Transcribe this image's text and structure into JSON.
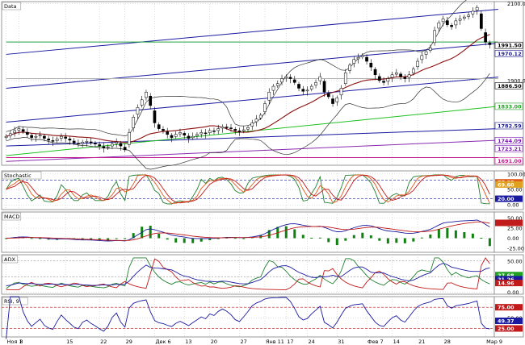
{
  "chart_data": {
    "type": "line",
    "x_ticks": [
      {
        "i": 0,
        "label": "Ноя 1"
      },
      {
        "i": 3,
        "label": "8"
      },
      {
        "i": 14,
        "label": "15"
      },
      {
        "i": 22,
        "label": "22"
      },
      {
        "i": 28,
        "label": "29"
      },
      {
        "i": 35,
        "label": "Дек 6"
      },
      {
        "i": 42,
        "label": "13"
      },
      {
        "i": 48,
        "label": "20"
      },
      {
        "i": 55,
        "label": "27"
      },
      {
        "i": 61,
        "label": "Янв 11"
      },
      {
        "i": 66,
        "label": "17"
      },
      {
        "i": 71,
        "label": "24"
      },
      {
        "i": 78,
        "label": "31"
      },
      {
        "i": 85,
        "label": "Фев 7"
      },
      {
        "i": 91,
        "label": "14"
      },
      {
        "i": 97,
        "label": "21"
      },
      {
        "i": 103,
        "label": "28"
      },
      {
        "i": 113,
        "label": "Мар 9"
      }
    ],
    "panels": [
      {
        "id": "price",
        "label": "Data",
        "ylim": [
          1680,
          2105
        ],
        "y_ticks": [
          2100.0,
          1900.0
        ],
        "price_tags": [
          {
            "value": 1991.5,
            "label": "1991.50",
            "bg": "#ffffff",
            "fg": "#000000"
          },
          {
            "value": 1970.12,
            "label": "1970.12",
            "bg": "#ffffff",
            "fg": "#1a1a8c"
          },
          {
            "value": 1886.5,
            "label": "1886.50",
            "bg": "#ffffff",
            "fg": "#000000"
          },
          {
            "value": 1833.0,
            "label": "1833.00",
            "bg": "#ffffff",
            "fg": "#20a020"
          },
          {
            "value": 1782.59,
            "label": "1782.59",
            "bg": "#ffffff",
            "fg": "#1a1a8c"
          },
          {
            "value": 1744.09,
            "label": "1744.09",
            "bg": "#ffffff",
            "fg": "#7a1ab0"
          },
          {
            "value": 1723.21,
            "label": "1723.21",
            "bg": "#ffffff",
            "fg": "#7a1ab0"
          },
          {
            "value": 1691.0,
            "label": "1691.00",
            "bg": "#ffffff",
            "fg": "#c01a8c"
          }
        ],
        "channel_lines": [
          {
            "color": "#1a1aa0",
            "from": [
              0,
              1968
            ],
            "to": [
              116,
              2085
            ]
          },
          {
            "color": "#1a1aa0",
            "from": [
              0,
              1880
            ],
            "to": [
              116,
              1997
            ]
          },
          {
            "color": "#1a1aa0",
            "from": [
              0,
              1792
            ],
            "to": [
              116,
              1909
            ]
          },
          {
            "color": "#1a1aa0",
            "from": [
              0,
              1730
            ],
            "to": [
              116,
              1775
            ]
          },
          {
            "color": "#8a2ab0",
            "from": [
              0,
              1690
            ],
            "to": [
              116,
              1745
            ]
          },
          {
            "color": "#20c020",
            "from": [
              0,
              1705
            ],
            "to": [
              116,
              1833
            ]
          },
          {
            "color": "#c01a8c",
            "from": [
              0,
              1700
            ],
            "to": [
              116,
              1700
            ]
          },
          {
            "color": "#20a040",
            "from": [
              0,
              2000
            ],
            "to": [
              116,
              2000
            ]
          },
          {
            "color": "#b0b0b0",
            "from": [
              0,
              1905
            ],
            "to": [
              116,
              1905
            ]
          }
        ],
        "close": [
          1755,
          1762,
          1770,
          1775,
          1768,
          1760,
          1752,
          1755,
          1758,
          1750,
          1745,
          1742,
          1748,
          1755,
          1750,
          1745,
          1738,
          1735,
          1740,
          1742,
          1738,
          1735,
          1730,
          1725,
          1728,
          1735,
          1740,
          1730,
          1720,
          1765,
          1805,
          1830,
          1850,
          1870,
          1835,
          1790,
          1775,
          1770,
          1760,
          1752,
          1760,
          1765,
          1758,
          1750,
          1755,
          1760,
          1765,
          1762,
          1770,
          1768,
          1775,
          1780,
          1778,
          1775,
          1770,
          1768,
          1772,
          1778,
          1790,
          1800,
          1810,
          1840,
          1870,
          1885,
          1892,
          1905,
          1910,
          1905,
          1895,
          1880,
          1872,
          1875,
          1885,
          1895,
          1910,
          1870,
          1858,
          1840,
          1855,
          1880,
          1920,
          1940,
          1955,
          1960,
          1965,
          1950,
          1935,
          1915,
          1900,
          1895,
          1905,
          1915,
          1920,
          1910,
          1905,
          1915,
          1930,
          1950,
          1965,
          1975,
          1985,
          2030,
          2050,
          2060,
          2045,
          2040,
          2055,
          2060,
          2065,
          2070,
          2080,
          2090,
          2035,
          2000,
          1993
        ]
      },
      {
        "id": "stochastic",
        "label": "Stochastic",
        "ylim": [
          -15,
          110
        ],
        "y_ticks": [
          100.0,
          50.0,
          0.0
        ],
        "tags": [
          {
            "value": 73.0,
            "label": "77.05",
            "bg": "#e05a1a",
            "fg": "#ffffff"
          },
          {
            "value": 66.0,
            "label": "69.60",
            "bg": "#e0a020",
            "fg": "#ffffff"
          },
          {
            "value": 20.0,
            "label": "20.00",
            "bg": "#1a1aa0",
            "fg": "#ffffff"
          }
        ]
      },
      {
        "id": "macd",
        "label": "MACD",
        "ylim": [
          -35,
          65
        ],
        "y_ticks": [
          50.0,
          25.0,
          0.0,
          -25.0
        ],
        "tags": [
          {
            "value": 38.0,
            "label": "",
            "bg": "#c01a1a",
            "fg": "#ffffff"
          }
        ]
      },
      {
        "id": "adx",
        "label": "ADX",
        "ylim": [
          -3,
          60
        ],
        "y_ticks": [
          50.0,
          25.0,
          0.0
        ],
        "tags": [
          {
            "value": 27.5,
            "label": "27.68",
            "bg": "#20a020",
            "fg": "#ffffff"
          },
          {
            "value": 21.0,
            "label": "21.26",
            "bg": "#1a1aa0",
            "fg": "#ffffff"
          },
          {
            "value": 14.9,
            "label": "14.96",
            "bg": "#c01a1a",
            "fg": "#ffffff"
          }
        ]
      },
      {
        "id": "rsi",
        "label": "RSI, 9",
        "ylim": [
          5,
          100
        ],
        "y_ticks": [
          75.0,
          50.0,
          25.0
        ],
        "tags": [
          {
            "value": 75.0,
            "label": "75.00",
            "bg": "#c01a1a",
            "fg": "#ffffff"
          },
          {
            "value": 43.0,
            "label": "49.37",
            "bg": "#1a1aa0",
            "fg": "#ffffff"
          },
          {
            "value": 25.0,
            "label": "25.00",
            "bg": "#c01a1a",
            "fg": "#ffffff"
          }
        ]
      }
    ]
  }
}
